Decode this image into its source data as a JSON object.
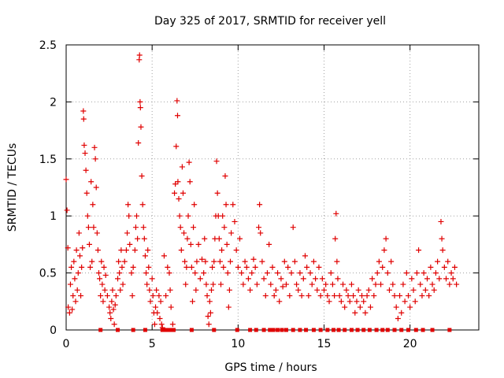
{
  "chart_data": {
    "type": "scatter",
    "title": "Day 325 of 2017, SRMTID for receiver yell",
    "xlabel": "GPS time / hours",
    "ylabel": "SRMTID / TECUs",
    "xlim": [
      0,
      24
    ],
    "ylim": [
      0,
      2.5
    ],
    "x_ticks": [
      0,
      5,
      10,
      15,
      20
    ],
    "x_tick_labels": [
      "0",
      "5",
      "10",
      "15",
      "20"
    ],
    "y_ticks": [
      0,
      0.5,
      1,
      1.5,
      2,
      2.5
    ],
    "y_tick_labels": [
      "0",
      "0.5",
      "1",
      "1.5",
      "2",
      "2.5"
    ],
    "grid": true,
    "marker": "+",
    "marker_color": "#e00000",
    "series": [
      {
        "name": "SRMTID",
        "points": [
          [
            0.0,
            1.32
          ],
          [
            0.05,
            1.05
          ],
          [
            0.1,
            0.72
          ],
          [
            0.12,
            0.2
          ],
          [
            0.2,
            0.15
          ],
          [
            0.25,
            0.4
          ],
          [
            0.3,
            0.55
          ],
          [
            0.35,
            0.18
          ],
          [
            0.4,
            0.3
          ],
          [
            0.45,
            0.6
          ],
          [
            0.5,
            0.45
          ],
          [
            0.55,
            0.25
          ],
          [
            0.6,
            0.7
          ],
          [
            0.65,
            0.35
          ],
          [
            0.7,
            0.5
          ],
          [
            0.75,
            0.85
          ],
          [
            0.8,
            0.65
          ],
          [
            0.85,
            0.3
          ],
          [
            0.9,
            0.55
          ],
          [
            0.95,
            0.72
          ],
          [
            1.0,
            1.92
          ],
          [
            1.02,
            1.85
          ],
          [
            1.05,
            1.62
          ],
          [
            1.1,
            1.55
          ],
          [
            1.15,
            1.4
          ],
          [
            1.2,
            1.2
          ],
          [
            1.25,
            1.0
          ],
          [
            1.3,
            0.9
          ],
          [
            1.35,
            0.75
          ],
          [
            1.4,
            0.55
          ],
          [
            1.45,
            1.3
          ],
          [
            1.5,
            0.6
          ],
          [
            1.55,
            1.1
          ],
          [
            1.6,
            0.9
          ],
          [
            1.65,
            1.6
          ],
          [
            1.7,
            1.5
          ],
          [
            1.75,
            1.25
          ],
          [
            1.8,
            0.85
          ],
          [
            1.85,
            0.7
          ],
          [
            1.9,
            0.5
          ],
          [
            1.95,
            0.45
          ],
          [
            2.0,
            0.3
          ],
          [
            2.05,
            0.6
          ],
          [
            2.1,
            0.4
          ],
          [
            2.15,
            0.25
          ],
          [
            2.2,
            0.55
          ],
          [
            2.25,
            0.35
          ],
          [
            2.3,
            0.48
          ],
          [
            2.4,
            0.3
          ],
          [
            2.5,
            0.2
          ],
          [
            2.55,
            0.15
          ],
          [
            2.6,
            0.1
          ],
          [
            2.65,
            0.25
          ],
          [
            2.7,
            0.35
          ],
          [
            2.75,
            0.18
          ],
          [
            2.8,
            0.05
          ],
          [
            2.85,
            0.22
          ],
          [
            2.9,
            0.3
          ],
          [
            3.0,
            0.45
          ],
          [
            3.05,
            0.6
          ],
          [
            3.1,
            0.5
          ],
          [
            3.15,
            0.35
          ],
          [
            3.2,
            0.7
          ],
          [
            3.25,
            0.55
          ],
          [
            3.3,
            0.4
          ],
          [
            3.4,
            0.6
          ],
          [
            3.5,
            0.7
          ],
          [
            3.55,
            0.85
          ],
          [
            3.6,
            1.1
          ],
          [
            3.65,
            1.0
          ],
          [
            3.7,
            0.75
          ],
          [
            3.8,
            0.5
          ],
          [
            3.85,
            0.3
          ],
          [
            3.9,
            0.55
          ],
          [
            4.0,
            0.7
          ],
          [
            4.05,
            0.9
          ],
          [
            4.1,
            1.0
          ],
          [
            4.15,
            0.8
          ],
          [
            4.2,
            1.64
          ],
          [
            4.25,
            2.37
          ],
          [
            4.27,
            2.41
          ],
          [
            4.3,
            2.0
          ],
          [
            4.32,
            1.95
          ],
          [
            4.35,
            1.78
          ],
          [
            4.4,
            1.35
          ],
          [
            4.45,
            1.1
          ],
          [
            4.5,
            0.9
          ],
          [
            4.55,
            0.8
          ],
          [
            4.6,
            0.65
          ],
          [
            4.65,
            0.5
          ],
          [
            4.7,
            0.4
          ],
          [
            4.75,
            0.7
          ],
          [
            4.8,
            0.55
          ],
          [
            4.85,
            0.35
          ],
          [
            4.9,
            0.25
          ],
          [
            5.0,
            0.45
          ],
          [
            5.05,
            0.3
          ],
          [
            5.1,
            0.15
          ],
          [
            5.15,
            0.05
          ],
          [
            5.2,
            0.2
          ],
          [
            5.25,
            0.35
          ],
          [
            5.3,
            0.15
          ],
          [
            5.4,
            0.3
          ],
          [
            5.45,
            0.1
          ],
          [
            5.5,
            0.25
          ],
          [
            5.55,
            0.05
          ],
          [
            5.6,
            0.02
          ],
          [
            5.7,
            0.65
          ],
          [
            5.8,
            0.3
          ],
          [
            5.9,
            0.55
          ],
          [
            6.0,
            0.5
          ],
          [
            6.05,
            0.35
          ],
          [
            6.1,
            0.2
          ],
          [
            6.2,
            0.05
          ],
          [
            6.3,
            1.2
          ],
          [
            6.35,
            1.28
          ],
          [
            6.4,
            1.61
          ],
          [
            6.45,
            2.01
          ],
          [
            6.48,
            1.88
          ],
          [
            6.5,
            1.3
          ],
          [
            6.55,
            1.15
          ],
          [
            6.6,
            1.0
          ],
          [
            6.65,
            0.9
          ],
          [
            6.7,
            0.7
          ],
          [
            6.75,
            1.43
          ],
          [
            6.8,
            1.2
          ],
          [
            6.85,
            0.85
          ],
          [
            6.9,
            0.6
          ],
          [
            6.95,
            0.4
          ],
          [
            7.0,
            0.55
          ],
          [
            7.05,
            0.8
          ],
          [
            7.1,
            1.0
          ],
          [
            7.15,
            1.47
          ],
          [
            7.2,
            1.3
          ],
          [
            7.25,
            0.75
          ],
          [
            7.3,
            0.55
          ],
          [
            7.35,
            0.25
          ],
          [
            7.4,
            0.9
          ],
          [
            7.45,
            1.1
          ],
          [
            7.5,
            0.5
          ],
          [
            7.55,
            0.35
          ],
          [
            7.6,
            0.6
          ],
          [
            7.7,
            0.75
          ],
          [
            7.8,
            0.45
          ],
          [
            7.9,
            0.62
          ],
          [
            8.0,
            0.5
          ],
          [
            8.05,
            0.8
          ],
          [
            8.1,
            0.6
          ],
          [
            8.15,
            0.4
          ],
          [
            8.2,
            0.3
          ],
          [
            8.25,
            0.12
          ],
          [
            8.3,
            0.05
          ],
          [
            8.35,
            0.25
          ],
          [
            8.4,
            0.15
          ],
          [
            8.45,
            0.35
          ],
          [
            8.5,
            0.55
          ],
          [
            8.55,
            0.4
          ],
          [
            8.6,
            0.6
          ],
          [
            8.65,
            0.8
          ],
          [
            8.7,
            1.0
          ],
          [
            8.75,
            1.48
          ],
          [
            8.8,
            1.2
          ],
          [
            8.85,
            1.0
          ],
          [
            8.9,
            0.8
          ],
          [
            8.95,
            0.6
          ],
          [
            9.0,
            0.4
          ],
          [
            9.05,
            0.7
          ],
          [
            9.1,
            1.0
          ],
          [
            9.15,
            0.55
          ],
          [
            9.2,
            0.9
          ],
          [
            9.25,
            1.35
          ],
          [
            9.3,
            1.1
          ],
          [
            9.35,
            0.75
          ],
          [
            9.4,
            0.5
          ],
          [
            9.45,
            0.2
          ],
          [
            9.5,
            0.35
          ],
          [
            9.55,
            0.6
          ],
          [
            9.6,
            0.85
          ],
          [
            9.7,
            1.1
          ],
          [
            9.8,
            0.95
          ],
          [
            9.9,
            0.7
          ],
          [
            10.0,
            0.55
          ],
          [
            10.1,
            0.8
          ],
          [
            10.2,
            0.5
          ],
          [
            10.3,
            0.4
          ],
          [
            10.4,
            0.6
          ],
          [
            10.5,
            0.55
          ],
          [
            10.6,
            0.45
          ],
          [
            10.7,
            0.35
          ],
          [
            10.8,
            0.5
          ],
          [
            10.9,
            0.62
          ],
          [
            11.0,
            0.55
          ],
          [
            11.1,
            0.4
          ],
          [
            11.2,
            0.9
          ],
          [
            11.25,
            1.1
          ],
          [
            11.3,
            0.85
          ],
          [
            11.4,
            0.6
          ],
          [
            11.5,
            0.45
          ],
          [
            11.6,
            0.3
          ],
          [
            11.7,
            0.5
          ],
          [
            11.8,
            0.75
          ],
          [
            11.9,
            0.4
          ],
          [
            12.0,
            0.55
          ],
          [
            12.1,
            0.3
          ],
          [
            12.2,
            0.35
          ],
          [
            12.3,
            0.5
          ],
          [
            12.4,
            0.25
          ],
          [
            12.5,
            0.45
          ],
          [
            12.6,
            0.38
          ],
          [
            12.7,
            0.6
          ],
          [
            12.8,
            0.4
          ],
          [
            12.9,
            0.55
          ],
          [
            13.0,
            0.3
          ],
          [
            13.1,
            0.5
          ],
          [
            13.2,
            0.9
          ],
          [
            13.3,
            0.6
          ],
          [
            13.4,
            0.4
          ],
          [
            13.5,
            0.35
          ],
          [
            13.6,
            0.5
          ],
          [
            13.7,
            0.3
          ],
          [
            13.8,
            0.45
          ],
          [
            13.9,
            0.65
          ],
          [
            14.0,
            0.55
          ],
          [
            14.1,
            0.3
          ],
          [
            14.2,
            0.5
          ],
          [
            14.3,
            0.4
          ],
          [
            14.4,
            0.6
          ],
          [
            14.5,
            0.45
          ],
          [
            14.6,
            0.35
          ],
          [
            14.7,
            0.55
          ],
          [
            14.8,
            0.3
          ],
          [
            14.9,
            0.45
          ],
          [
            15.0,
            0.35
          ],
          [
            15.1,
            0.4
          ],
          [
            15.2,
            0.3
          ],
          [
            15.3,
            0.25
          ],
          [
            15.4,
            0.5
          ],
          [
            15.5,
            0.4
          ],
          [
            15.6,
            0.3
          ],
          [
            15.65,
            0.8
          ],
          [
            15.7,
            1.02
          ],
          [
            15.75,
            0.6
          ],
          [
            15.8,
            0.45
          ],
          [
            15.9,
            0.3
          ],
          [
            16.0,
            0.25
          ],
          [
            16.1,
            0.4
          ],
          [
            16.2,
            0.2
          ],
          [
            16.3,
            0.35
          ],
          [
            16.4,
            0.3
          ],
          [
            16.5,
            0.25
          ],
          [
            16.6,
            0.4
          ],
          [
            16.7,
            0.3
          ],
          [
            16.8,
            0.15
          ],
          [
            16.9,
            0.25
          ],
          [
            17.0,
            0.35
          ],
          [
            17.1,
            0.2
          ],
          [
            17.2,
            0.3
          ],
          [
            17.3,
            0.25
          ],
          [
            17.4,
            0.15
          ],
          [
            17.5,
            0.3
          ],
          [
            17.6,
            0.35
          ],
          [
            17.7,
            0.2
          ],
          [
            17.8,
            0.45
          ],
          [
            17.9,
            0.3
          ],
          [
            18.0,
            0.4
          ],
          [
            18.1,
            0.5
          ],
          [
            18.2,
            0.6
          ],
          [
            18.3,
            0.4
          ],
          [
            18.4,
            0.55
          ],
          [
            18.5,
            0.7
          ],
          [
            18.6,
            0.8
          ],
          [
            18.7,
            0.5
          ],
          [
            18.8,
            0.35
          ],
          [
            18.9,
            0.6
          ],
          [
            19.0,
            0.4
          ],
          [
            19.1,
            0.3
          ],
          [
            19.2,
            0.2
          ],
          [
            19.3,
            0.1
          ],
          [
            19.4,
            0.3
          ],
          [
            19.5,
            0.15
          ],
          [
            19.6,
            0.4
          ],
          [
            19.7,
            0.25
          ],
          [
            19.8,
            0.5
          ],
          [
            19.9,
            0.3
          ],
          [
            20.0,
            0.2
          ],
          [
            20.1,
            0.45
          ],
          [
            20.2,
            0.35
          ],
          [
            20.3,
            0.25
          ],
          [
            20.4,
            0.5
          ],
          [
            20.5,
            0.7
          ],
          [
            20.6,
            0.4
          ],
          [
            20.7,
            0.3
          ],
          [
            20.8,
            0.5
          ],
          [
            20.9,
            0.35
          ],
          [
            21.0,
            0.45
          ],
          [
            21.1,
            0.3
          ],
          [
            21.2,
            0.55
          ],
          [
            21.3,
            0.4
          ],
          [
            21.4,
            0.35
          ],
          [
            21.5,
            0.5
          ],
          [
            21.6,
            0.6
          ],
          [
            21.7,
            0.45
          ],
          [
            21.8,
            0.95
          ],
          [
            21.85,
            0.8
          ],
          [
            21.9,
            0.7
          ],
          [
            22.0,
            0.55
          ],
          [
            22.1,
            0.45
          ],
          [
            22.2,
            0.6
          ],
          [
            22.3,
            0.4
          ],
          [
            22.4,
            0.5
          ],
          [
            22.5,
            0.45
          ],
          [
            22.6,
            0.55
          ],
          [
            22.7,
            0.4
          ]
        ]
      }
    ],
    "zero_markers": {
      "marker": "square",
      "y": 0,
      "x": [
        2.0,
        3.0,
        3.9,
        4.6,
        5.6,
        5.8,
        5.95,
        6.05,
        6.15,
        6.25,
        7.3,
        8.6,
        9.95,
        10.7,
        11.05,
        11.5,
        11.85,
        12.05,
        12.3,
        12.55,
        12.8,
        13.2,
        13.6,
        13.95,
        14.4,
        14.8,
        15.2,
        15.55,
        15.85,
        16.2,
        16.6,
        16.95,
        17.3,
        17.65,
        18.05,
        18.4,
        18.7,
        19.1,
        19.5,
        19.9,
        20.35,
        20.75,
        21.3,
        22.3
      ]
    }
  }
}
